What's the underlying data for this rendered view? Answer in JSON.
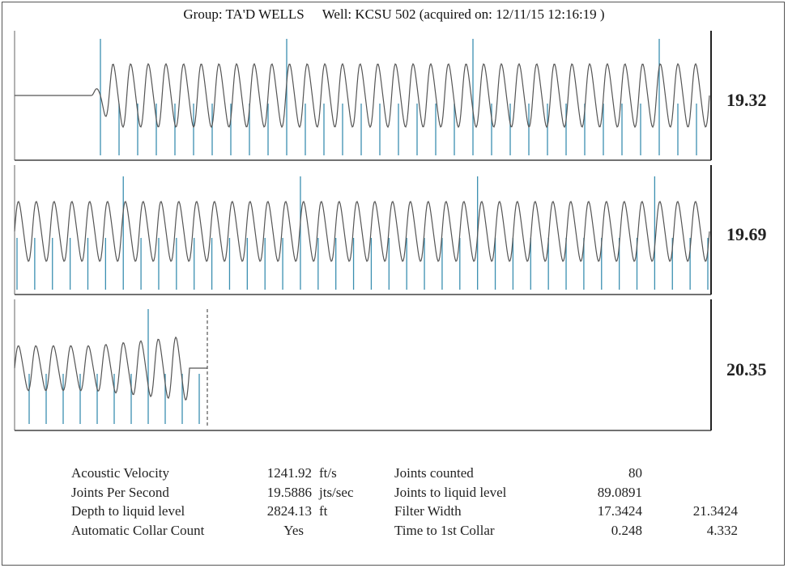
{
  "header": {
    "group": "Group: TA'D WELLS",
    "well": "Well: KCSU 502 (acquired on: 12/11/15 12:16:19 )"
  },
  "chart_data": [
    {
      "type": "line",
      "panel": 1,
      "side_label": "19.32",
      "flat_start": true,
      "n_waves": 35,
      "n_collars": 33,
      "major_marker_indices": [
        0,
        10,
        20,
        30
      ],
      "colors": {
        "trace": "#555555",
        "collar": "#3b8fb0",
        "axis": "#222222"
      }
    },
    {
      "type": "line",
      "panel": 2,
      "side_label": "19.69",
      "flat_start": false,
      "n_waves": 39,
      "n_collars": 40,
      "major_marker_indices": [
        6,
        16,
        26,
        36
      ],
      "colors": {
        "trace": "#555555",
        "collar": "#3b8fb0",
        "axis": "#222222"
      }
    },
    {
      "type": "line",
      "panel": 3,
      "side_label": "20.35",
      "flat_end": true,
      "n_waves": 10,
      "n_collars": 11,
      "major_marker_indices": [
        7
      ],
      "end_marker": "dashed",
      "colors": {
        "trace": "#555555",
        "collar": "#3b8fb0",
        "axis": "#222222"
      }
    }
  ],
  "stats": {
    "left": [
      {
        "label": "Acoustic Velocity",
        "value": "1241.92",
        "unit": "ft/s"
      },
      {
        "label": "Joints Per Second",
        "value": "19.5886",
        "unit": "jts/sec"
      },
      {
        "label": "Depth to liquid level",
        "value": "2824.13",
        "unit": "ft"
      },
      {
        "label": "Automatic Collar Count",
        "value": "Yes",
        "unit": ""
      }
    ],
    "right": [
      {
        "label": "Joints counted",
        "value": "80",
        "value2": ""
      },
      {
        "label": "Joints to liquid level",
        "value": "89.0891",
        "value2": ""
      },
      {
        "label": "Filter Width",
        "value": "17.3424",
        "value2": "21.3424"
      },
      {
        "label": "Time to 1st Collar",
        "value": "0.248",
        "value2": "4.332"
      }
    ]
  }
}
